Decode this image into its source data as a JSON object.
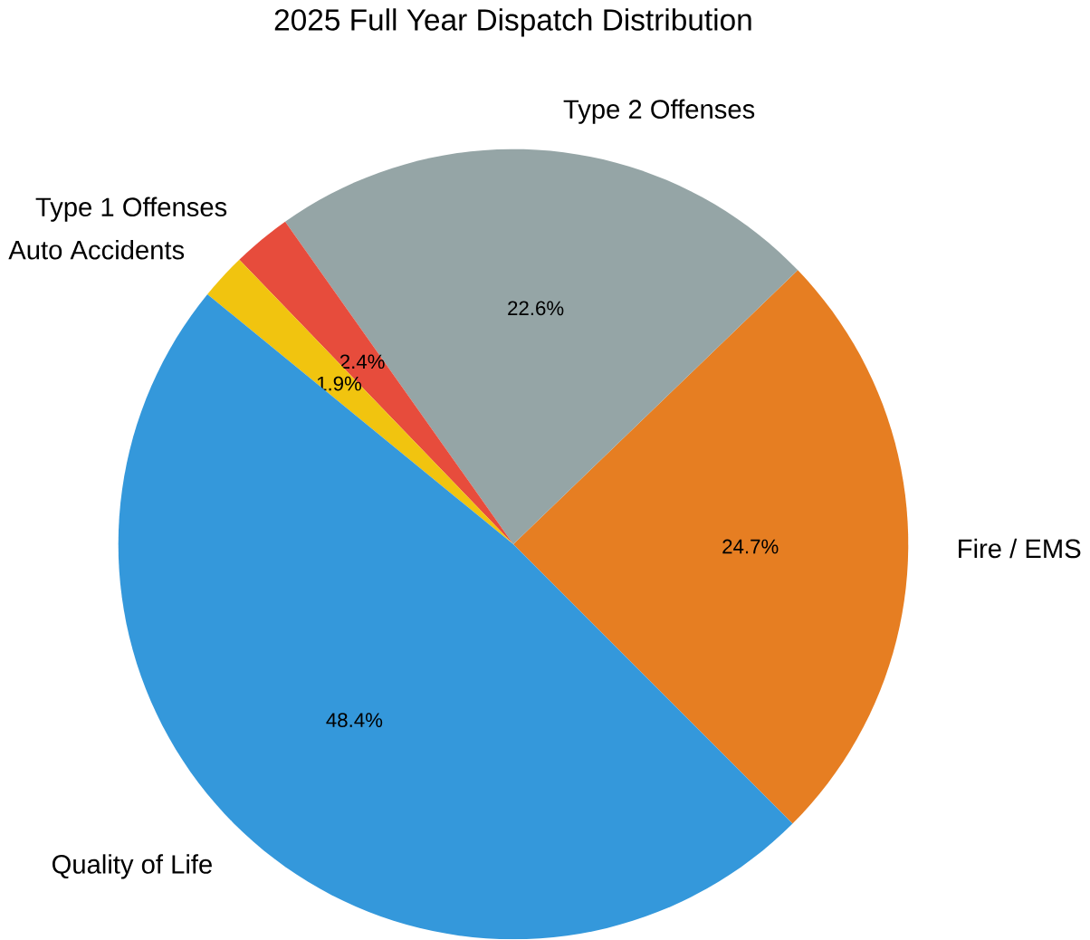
{
  "chart_data": {
    "type": "pie",
    "title": "2025 Full Year Dispatch Distribution",
    "categories": [
      "Fire / EMS",
      "Type 2 Offenses",
      "Type 1 Offenses",
      "Auto Accidents",
      "Quality of Life"
    ],
    "values": [
      24.7,
      22.6,
      2.4,
      1.9,
      48.4
    ],
    "colors": [
      "#e67e22",
      "#95a5a6",
      "#e74c3c",
      "#f1c40f",
      "#3498db"
    ],
    "value_labels": [
      "24.7%",
      "22.6%",
      "2.4%",
      "1.9%",
      "48.4%"
    ]
  }
}
